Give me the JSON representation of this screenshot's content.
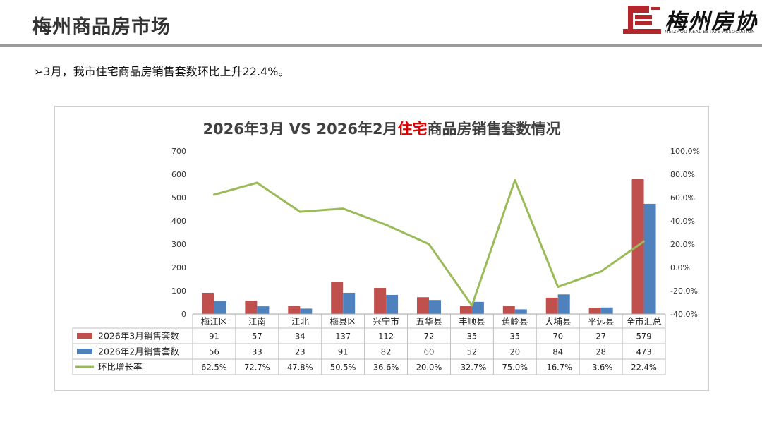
{
  "header": {
    "title": "梅州商品房市场"
  },
  "logo": {
    "name": "梅州房协",
    "subtitle": "MEIZHOU REAL ESTATE ASSOCIATION"
  },
  "bullet": {
    "marker": "➢",
    "text": "3月，我市住宅商品房销售套数环比上升22.4%。"
  },
  "colors": {
    "march": "#c0504d",
    "feb": "#4f81bd",
    "growth": "#9bbb59"
  },
  "chart_data": {
    "type": "bar",
    "title": {
      "part1": "2026年3月 VS 2026年2月",
      "highlight": "住宅",
      "part2": "商品房销售套数情况"
    },
    "categories": [
      "梅江区",
      "江南",
      "江北",
      "梅县区",
      "兴宁市",
      "五华县",
      "丰顺县",
      "蕉岭县",
      "大埔县",
      "平远县",
      "全市汇总"
    ],
    "series": [
      {
        "name": "2026年3月销售套数",
        "type": "bar",
        "axis": "left",
        "values": [
          91,
          57,
          34,
          137,
          112,
          72,
          35,
          35,
          70,
          27,
          579
        ]
      },
      {
        "name": "2026年2月销售套数",
        "type": "bar",
        "axis": "left",
        "values": [
          56,
          33,
          23,
          91,
          82,
          60,
          52,
          20,
          84,
          28,
          473
        ]
      },
      {
        "name": "环比增长率",
        "type": "line",
        "axis": "right",
        "values": [
          62.5,
          72.7,
          47.8,
          50.5,
          36.6,
          20.0,
          -32.7,
          75.0,
          -16.7,
          -3.6,
          22.4
        ],
        "labels": [
          "62.5%",
          "72.7%",
          "47.8%",
          "50.5%",
          "36.6%",
          "20.0%",
          "-32.7%",
          "75.0%",
          "-16.7%",
          "-3.6%",
          "22.4%"
        ]
      }
    ],
    "ylim": [
      0,
      700
    ],
    "yticks": [
      0,
      100,
      200,
      300,
      400,
      500,
      600,
      700
    ],
    "y2lim": [
      -40,
      100
    ],
    "y2ticks": [
      "100.0%",
      "80.0%",
      "60.0%",
      "40.0%",
      "20.0%",
      "0.0%",
      "-20.0%",
      "-40.0%"
    ],
    "legend": "data-table"
  }
}
